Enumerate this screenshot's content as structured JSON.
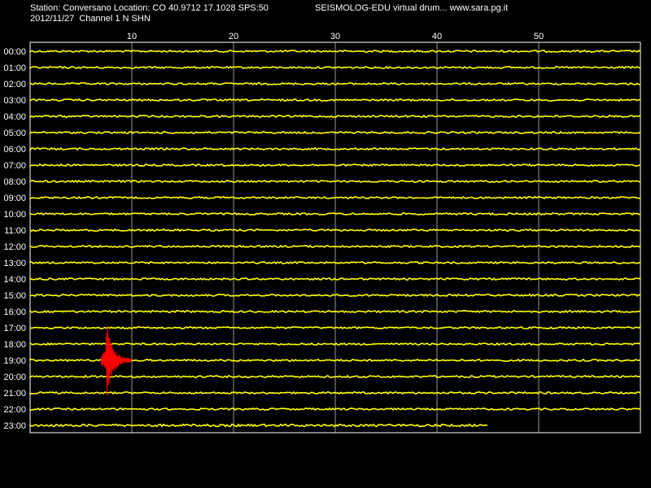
{
  "header": {
    "station_line": "Station: Conversano Location: CO 40.9712 17.1028 SPS:50",
    "date_channel_line": "2012/11/27  Channel 1 N SHN",
    "app_title": "SEISMOLOG-EDU virtual drum... www.sara.pg.it"
  },
  "colors": {
    "background": "#000000",
    "trace": "#ffff00",
    "event": "#ff0000",
    "grid": "#ffffff",
    "text": "#ffffff"
  },
  "chart_data": {
    "type": "line",
    "x_unit_ticks": [
      "10",
      "20",
      "30",
      "40",
      "50"
    ],
    "xlim": [
      0,
      60
    ],
    "rows": [
      "00:00",
      "01:00",
      "02:00",
      "03:00",
      "04:00",
      "05:00",
      "06:00",
      "07:00",
      "08:00",
      "09:00",
      "10:00",
      "11:00",
      "12:00",
      "13:00",
      "14:00",
      "15:00",
      "16:00",
      "17:00",
      "18:00",
      "19:00",
      "20:00",
      "21:00",
      "22:00",
      "23:00"
    ],
    "last_row_end_minute": 45,
    "event": {
      "row": "19:00",
      "minute_start": 7,
      "minute_end": 10,
      "peak_minute": 7.5
    },
    "grid": true
  }
}
